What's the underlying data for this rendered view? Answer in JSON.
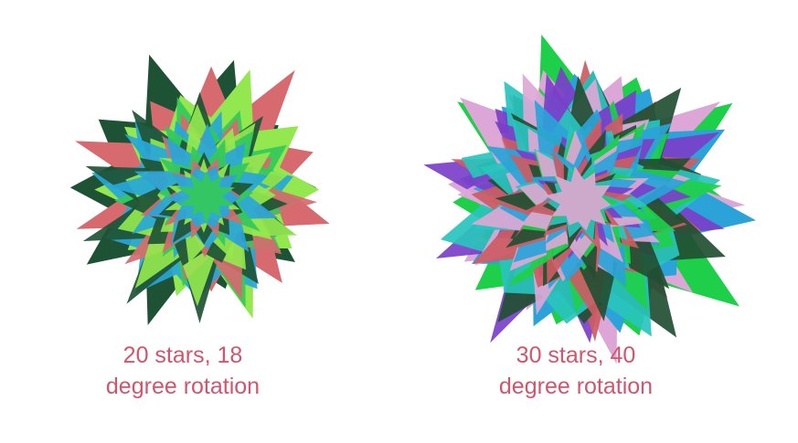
{
  "artworks": [
    {
      "caption": "20 stars, 18\ndegree rotation",
      "caption_color": "#d0566e",
      "star_count": 20,
      "rotation_degrees": 18,
      "star_points": 10,
      "palette": [
        "#1e5235",
        "#d66a6f",
        "#92e84e",
        "#27a6d8",
        "#34c85a"
      ]
    },
    {
      "caption": "30 stars, 40\ndegree rotation",
      "caption_color": "#d0566e",
      "star_count": 30,
      "rotation_degrees": 40,
      "star_points": 10,
      "palette": [
        "#1ecf4a",
        "#dca7d6",
        "#2ba3d8",
        "#7b3fc9",
        "#cc5c63",
        "#224f33",
        "#29c4bd"
      ]
    }
  ]
}
